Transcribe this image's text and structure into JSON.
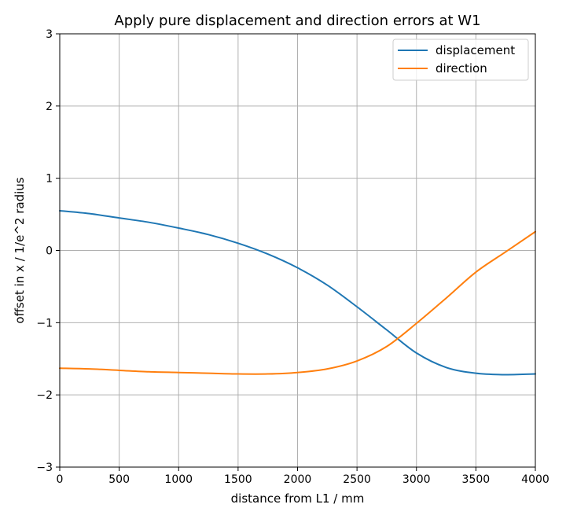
{
  "chart_data": {
    "type": "line",
    "title": "Apply pure displacement and direction errors at W1",
    "xlabel": "distance from L1 / mm",
    "ylabel": "offset in x / 1/e^2 radius",
    "xlim": [
      0,
      4000
    ],
    "ylim": [
      -3,
      3
    ],
    "x_ticks": [
      0,
      500,
      1000,
      1500,
      2000,
      2500,
      3000,
      3500,
      4000
    ],
    "x_tick_labels": [
      "0",
      "500",
      "1000",
      "1500",
      "2000",
      "2500",
      "3000",
      "3500",
      "4000"
    ],
    "y_ticks": [
      -3,
      -2,
      -1,
      0,
      1,
      2,
      3
    ],
    "y_tick_labels": [
      "−3",
      "−2",
      "−1",
      "0",
      "1",
      "2",
      "3"
    ],
    "grid": true,
    "legend_position": "top-right",
    "x": [
      0,
      250,
      500,
      750,
      1000,
      1250,
      1500,
      1750,
      2000,
      2250,
      2500,
      2750,
      3000,
      3250,
      3500,
      3750,
      4000
    ],
    "series": [
      {
        "name": "displacement",
        "color": "#1f77b4",
        "values": [
          0.55,
          0.51,
          0.45,
          0.39,
          0.31,
          0.22,
          0.1,
          -0.05,
          -0.24,
          -0.48,
          -0.78,
          -1.1,
          -1.42,
          -1.62,
          -1.7,
          -1.72,
          -1.71
        ]
      },
      {
        "name": "direction",
        "color": "#ff7f0e",
        "values": [
          -1.63,
          -1.64,
          -1.66,
          -1.68,
          -1.69,
          -1.7,
          -1.71,
          -1.71,
          -1.69,
          -1.64,
          -1.53,
          -1.33,
          -1.01,
          -0.66,
          -0.3,
          -0.02,
          0.26
        ]
      }
    ]
  }
}
